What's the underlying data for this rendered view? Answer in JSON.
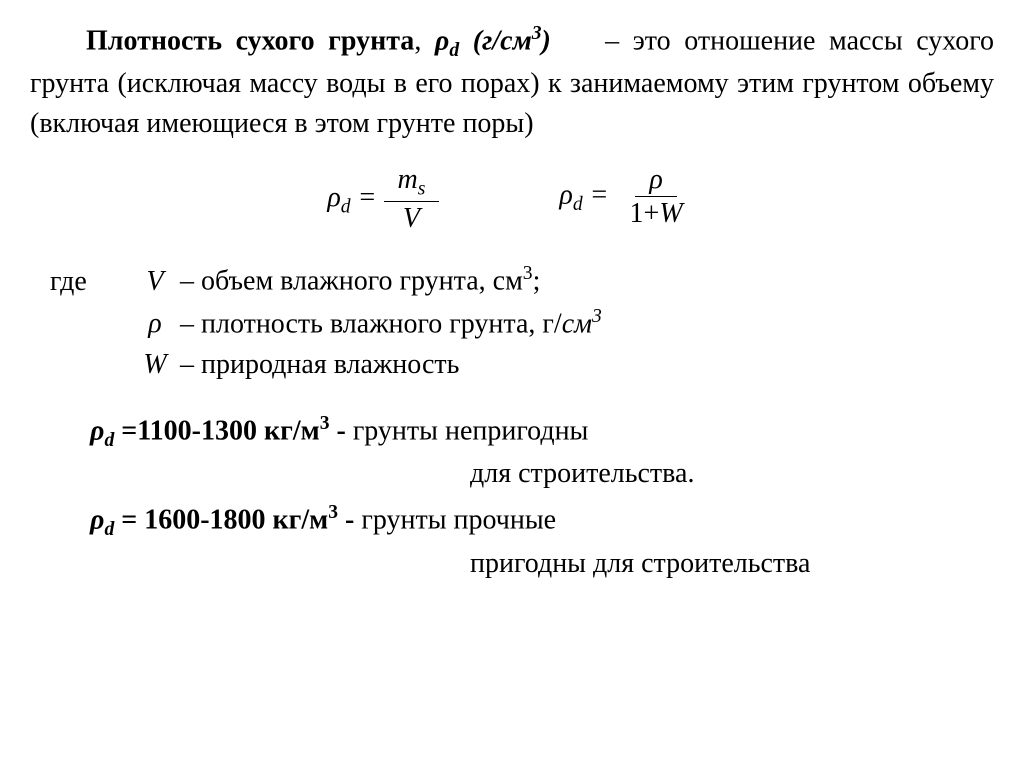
{
  "title_bold": "Плотность сухого грунта",
  "title_sym_prefix": ", ",
  "title_rho": "ρ",
  "title_sub": "d",
  "title_unit_open": " (г/см",
  "title_unit_exp": "3",
  "title_unit_close": ")",
  "dash": " – ",
  "def_text": "это отношение массы сухого грунта (исключая массу воды в его порах) к занимаемому этим грунтом объему (включая имеющиеся в этом грунте поры)",
  "formula1": {
    "lhs_rho": "ρ",
    "lhs_sub": "d",
    "eq": " = ",
    "num_m": "m",
    "num_sub": "s",
    "den": "V"
  },
  "formula2": {
    "lhs_rho": "ρ",
    "lhs_sub": "d",
    "eq": " = ",
    "num": "ρ",
    "den_pre": "1",
    "den_plus": "+",
    "den_W": "W"
  },
  "where_label": "где",
  "where": [
    {
      "sym": "V",
      "text": " – объем влажного грунта, см",
      "sup": "3",
      "tail": ";"
    },
    {
      "sym": "ρ",
      "text": " – плотность влажного грунта, г/",
      "unit_it": "см",
      "sup": "3",
      "tail": ""
    },
    {
      "sym": "W",
      "text": " – природная влажность",
      "sup": "",
      "tail": ""
    }
  ],
  "range1": {
    "rho": "ρ",
    "sub": "d",
    "eq": " =",
    "val": "1100-1300 кг/м",
    "exp": "3",
    "post": " - ",
    "txt": "грунты непригодны",
    "cont": "для строительства."
  },
  "range2": {
    "rho": "ρ",
    "sub": "d",
    "eq": " = ",
    "val": "1600-1800 кг/м",
    "exp": "3",
    "post": " - ",
    "txt": "грунты прочные",
    "cont": "пригодны для строительства"
  }
}
